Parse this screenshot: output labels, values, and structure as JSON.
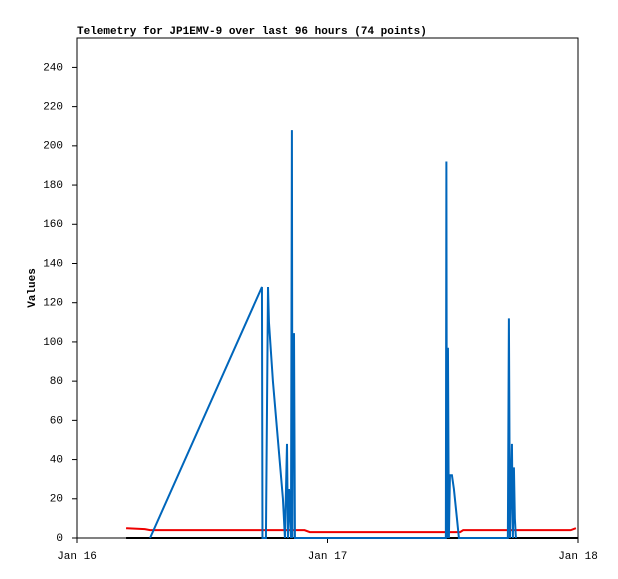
{
  "chart_data": {
    "type": "line",
    "title": "Telemetry for JP1EMV-9 over last 96 hours (74 points)",
    "ylabel": "Values",
    "xlim": [
      0,
      48
    ],
    "xticks": [
      {
        "value": 0,
        "label": "Jan 16"
      },
      {
        "value": 24,
        "label": "Jan 17"
      },
      {
        "value": 48,
        "label": "Jan 18"
      }
    ],
    "ylim": [
      0,
      255
    ],
    "yticks": [
      0,
      20,
      40,
      60,
      80,
      100,
      120,
      140,
      160,
      180,
      200,
      220,
      240
    ],
    "series": [
      {
        "color": "#ee0000",
        "x": [
          4.7,
          6.5,
          7.0,
          21.8,
          22.3,
          36.7,
          37.0,
          47.3,
          47.8
        ],
        "values": [
          5,
          4.5,
          4,
          4,
          3,
          3,
          4,
          4,
          5
        ]
      },
      {
        "color": "#000000",
        "x": [
          4.7,
          48
        ],
        "values": [
          0,
          0
        ]
      },
      {
        "color": "#0066bb",
        "x": [
          7.0,
          17.72,
          17.77,
          18.1,
          18.2,
          18.3,
          18.39,
          18.77,
          19.25,
          19.73,
          19.92,
          20.12,
          20.21,
          20.31,
          20.5,
          20.59,
          20.64,
          20.69,
          20.79,
          20.88,
          35.34,
          35.39,
          35.44,
          35.54,
          35.63,
          35.73,
          35.92,
          36.11,
          36.4,
          36.59,
          41.28,
          41.33,
          41.38,
          41.48,
          41.67,
          41.76,
          41.86,
          41.95,
          42.05
        ],
        "values": [
          0,
          128,
          0,
          0,
          64,
          128,
          110,
          80,
          50,
          20,
          0,
          48,
          0,
          25,
          0,
          208,
          0,
          104,
          104,
          0,
          0,
          192,
          0,
          97,
          0,
          32,
          32,
          25,
          10,
          0,
          0,
          56,
          112,
          0,
          48,
          0,
          36,
          10,
          0
        ]
      }
    ]
  }
}
